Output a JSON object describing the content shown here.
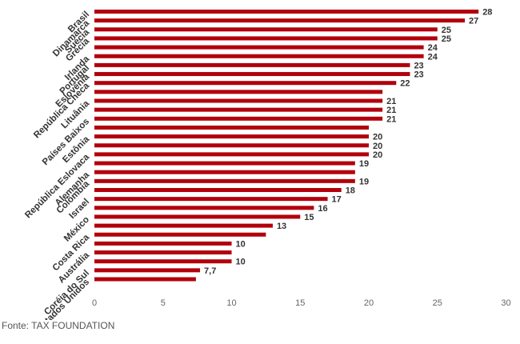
{
  "chart_data": {
    "type": "bar",
    "orientation": "horizontal",
    "title": "",
    "xlabel": "",
    "ylabel": "",
    "xlim": [
      0,
      30
    ],
    "xticks": [
      0,
      5,
      10,
      15,
      20,
      25,
      30
    ],
    "grid": false,
    "bar_color": "#b2000c",
    "values": [
      28,
      27,
      25,
      25,
      24,
      24,
      23,
      23,
      22,
      21,
      21,
      21,
      21,
      20,
      20,
      20,
      20,
      19,
      19,
      19,
      18,
      17,
      16,
      15,
      13,
      12.5,
      10,
      10,
      10,
      7.7,
      7.4
    ],
    "value_labels": [
      "28",
      "27",
      "25",
      "25",
      "24",
      "24",
      "23",
      "23",
      "22",
      "",
      "21",
      "21",
      "21",
      "",
      "20",
      "20",
      "20",
      "19",
      "",
      "19",
      "18",
      "17",
      "16",
      "15",
      "13",
      "",
      "10",
      "",
      "10",
      "7,7",
      ""
    ],
    "category_labels": [
      "Brasil",
      "Dinamarca",
      "Suécia",
      "Grécia",
      "Irlanda",
      "Portugal",
      "Eslovênia",
      "República Checa",
      "Lituânia",
      "Países Baixos",
      "Estônia",
      "República Eslovaca",
      "Alemanha",
      "Colômbia",
      "Israel",
      "México",
      "Costa Rica",
      "Austrália",
      "Coréia do Sul",
      "Estados Unidos"
    ],
    "label_bar_index": [
      0,
      1,
      2,
      3,
      5,
      6,
      7,
      8,
      10,
      12,
      14,
      16,
      18,
      19,
      21,
      23,
      25,
      27,
      29,
      30
    ]
  },
  "source": "Fonte: TAX FOUNDATION"
}
